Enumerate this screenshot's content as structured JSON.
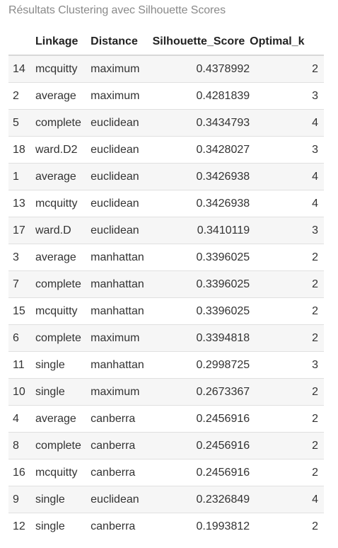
{
  "caption": "Résultats Clustering avec Silhouette Scores",
  "table": {
    "headers": {
      "index": "",
      "linkage": "Linkage",
      "distance": "Distance",
      "score": "Silhouette_Score",
      "k": "Optimal_k"
    },
    "rows": [
      {
        "index": "14",
        "linkage": "mcquitty",
        "distance": "maximum",
        "score": "0.4378992",
        "k": "2"
      },
      {
        "index": "2",
        "linkage": "average",
        "distance": "maximum",
        "score": "0.4281839",
        "k": "3"
      },
      {
        "index": "5",
        "linkage": "complete",
        "distance": "euclidean",
        "score": "0.3434793",
        "k": "4"
      },
      {
        "index": "18",
        "linkage": "ward.D2",
        "distance": "euclidean",
        "score": "0.3428027",
        "k": "3"
      },
      {
        "index": "1",
        "linkage": "average",
        "distance": "euclidean",
        "score": "0.3426938",
        "k": "4"
      },
      {
        "index": "13",
        "linkage": "mcquitty",
        "distance": "euclidean",
        "score": "0.3426938",
        "k": "4"
      },
      {
        "index": "17",
        "linkage": "ward.D",
        "distance": "euclidean",
        "score": "0.3410119",
        "k": "3"
      },
      {
        "index": "3",
        "linkage": "average",
        "distance": "manhattan",
        "score": "0.3396025",
        "k": "2"
      },
      {
        "index": "7",
        "linkage": "complete",
        "distance": "manhattan",
        "score": "0.3396025",
        "k": "2"
      },
      {
        "index": "15",
        "linkage": "mcquitty",
        "distance": "manhattan",
        "score": "0.3396025",
        "k": "2"
      },
      {
        "index": "6",
        "linkage": "complete",
        "distance": "maximum",
        "score": "0.3394818",
        "k": "2"
      },
      {
        "index": "11",
        "linkage": "single",
        "distance": "manhattan",
        "score": "0.2998725",
        "k": "3"
      },
      {
        "index": "10",
        "linkage": "single",
        "distance": "maximum",
        "score": "0.2673367",
        "k": "2"
      },
      {
        "index": "4",
        "linkage": "average",
        "distance": "canberra",
        "score": "0.2456916",
        "k": "2"
      },
      {
        "index": "8",
        "linkage": "complete",
        "distance": "canberra",
        "score": "0.2456916",
        "k": "2"
      },
      {
        "index": "16",
        "linkage": "mcquitty",
        "distance": "canberra",
        "score": "0.2456916",
        "k": "2"
      },
      {
        "index": "9",
        "linkage": "single",
        "distance": "euclidean",
        "score": "0.2326849",
        "k": "4"
      },
      {
        "index": "12",
        "linkage": "single",
        "distance": "canberra",
        "score": "0.1993812",
        "k": "2"
      }
    ]
  }
}
